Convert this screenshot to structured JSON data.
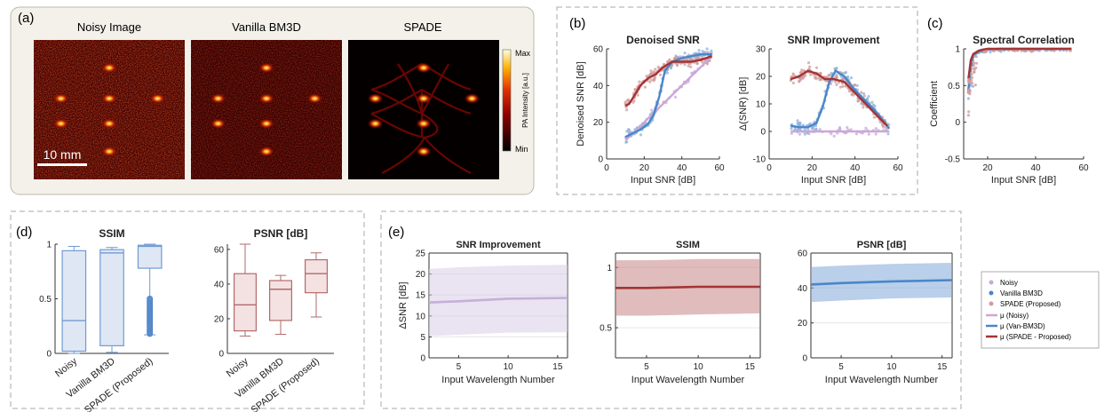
{
  "panel_labels": {
    "a": "(a)",
    "b": "(b)",
    "c": "(c)",
    "d": "(d)",
    "e": "(e)"
  },
  "colors": {
    "noisy": "#c9a8d8",
    "noisy_line": "#c9a8d8",
    "bm3d": "#8fb2dc",
    "bm3d_line": "#4a86c8",
    "spade": "#d29b9b",
    "spade_line": "#a33434",
    "frame_border": "#aaaaaa",
    "panel_a_bg": "#f3f1ea"
  },
  "panel_a": {
    "titles": [
      "Noisy Image",
      "Vanilla BM3D",
      "SPADE"
    ],
    "colorbar": {
      "max": "Max",
      "min": "Min",
      "label": "PA Intensity [a.u.]"
    },
    "scalebar": "10 mm"
  },
  "chart_data": [
    {
      "type": "scatter",
      "title": "Denoised SNR",
      "xlabel": "Input SNR [dB]",
      "ylabel": "Denoised SNR [dB]",
      "xlim": [
        0,
        60
      ],
      "ylim": [
        0,
        60
      ],
      "xticks": [
        0,
        20,
        40,
        60
      ],
      "yticks": [
        0,
        20,
        40,
        60
      ],
      "series": [
        {
          "name": "μ (Noisy)",
          "kind": "line",
          "x": [
            10,
            56
          ],
          "y": [
            10,
            56
          ]
        },
        {
          "name": "μ (Van-BM3D)",
          "kind": "line",
          "x": [
            10,
            14,
            18,
            22,
            25,
            28,
            31,
            35,
            40,
            45,
            50,
            56
          ],
          "y": [
            12,
            14,
            16,
            19,
            24,
            34,
            48,
            53,
            55,
            56,
            57,
            57
          ]
        },
        {
          "name": "μ (SPADE - Proposed)",
          "kind": "line",
          "x": [
            10,
            12,
            15,
            18,
            22,
            26,
            30,
            35,
            40,
            45,
            50,
            56
          ],
          "y": [
            29,
            30,
            35,
            40,
            44,
            46,
            50,
            53,
            53,
            53,
            54,
            56
          ]
        }
      ]
    },
    {
      "type": "scatter",
      "title": "SNR Improvement",
      "xlabel": "Input SNR [dB]",
      "ylabel": "Δ(SNR) [dB]",
      "xlim": [
        0,
        60
      ],
      "ylim": [
        -10,
        30
      ],
      "xticks": [
        0,
        20,
        40,
        60
      ],
      "yticks": [
        -10,
        0,
        10,
        20,
        30
      ],
      "series": [
        {
          "name": "μ (Noisy)",
          "kind": "line",
          "x": [
            10,
            56
          ],
          "y": [
            0,
            0
          ]
        },
        {
          "name": "μ (Van-BM3D)",
          "kind": "line",
          "x": [
            10,
            14,
            18,
            22,
            25,
            28,
            31,
            35,
            40,
            45,
            50,
            56
          ],
          "y": [
            2,
            1.5,
            1.5,
            3,
            9,
            18,
            22,
            20,
            15,
            11,
            7,
            1
          ]
        },
        {
          "name": "μ (SPADE - Proposed)",
          "kind": "line",
          "x": [
            10,
            14,
            18,
            22,
            26,
            30,
            35,
            40,
            45,
            50,
            55
          ],
          "y": [
            19,
            20,
            22,
            21,
            19,
            19,
            18,
            14,
            10,
            6,
            2
          ]
        }
      ]
    },
    {
      "type": "scatter",
      "title": "Spectral Correlation",
      "xlabel": "Input SNR [dB]",
      "ylabel": "Coefficient",
      "xlim": [
        10,
        60
      ],
      "ylim": [
        -0.5,
        1
      ],
      "xticks": [
        20,
        40,
        60
      ],
      "yticks": [
        -0.5,
        0,
        0.5,
        1
      ],
      "series": [
        {
          "name": "μ (Van-BM3D)",
          "kind": "line",
          "x": [
            12,
            13,
            14,
            16,
            18,
            20,
            25,
            30,
            55
          ],
          "y": [
            0.45,
            0.75,
            0.9,
            0.96,
            0.98,
            0.99,
            1,
            1,
            1
          ]
        },
        {
          "name": "μ (SPADE - Proposed)",
          "kind": "line",
          "x": [
            12,
            13,
            14,
            16,
            18,
            20,
            25,
            30,
            55
          ],
          "y": [
            0.6,
            0.85,
            0.93,
            0.97,
            0.99,
            1,
            1,
            1,
            1
          ]
        }
      ]
    },
    {
      "type": "box",
      "title": "SSIM",
      "categories": [
        "Noisy",
        "Vanilla BM3D",
        "SPADE (Proposed)"
      ],
      "ylim": [
        0,
        1
      ],
      "yticks": [
        0,
        0.5,
        1
      ],
      "boxes": [
        {
          "min": 0,
          "q1": 0.02,
          "median": 0.3,
          "q3": 0.94,
          "max": 0.98
        },
        {
          "min": 0.01,
          "q1": 0.07,
          "median": 0.92,
          "q3": 0.95,
          "max": 0.97
        },
        {
          "min": 0.17,
          "q1": 0.78,
          "median": 0.98,
          "q3": 0.99,
          "max": 1,
          "outliers": [
            0.18,
            0.2,
            0.22,
            0.24,
            0.26,
            0.28,
            0.3,
            0.32,
            0.34,
            0.36,
            0.38,
            0.4,
            0.42,
            0.44,
            0.46,
            0.48,
            0.5
          ]
        }
      ]
    },
    {
      "type": "box",
      "title": "PSNR [dB]",
      "categories": [
        "Noisy",
        "Vanilla BM3D",
        "SPADE (Proposed)"
      ],
      "ylim": [
        0,
        63
      ],
      "yticks": [
        0,
        20,
        40,
        60
      ],
      "boxes": [
        {
          "min": 10,
          "q1": 13,
          "median": 28,
          "q3": 46,
          "max": 63
        },
        {
          "min": 11,
          "q1": 19,
          "median": 37,
          "q3": 42,
          "max": 45
        },
        {
          "min": 21,
          "q1": 35,
          "median": 46,
          "q3": 54,
          "max": 58
        }
      ]
    },
    {
      "type": "area",
      "title": "SNR Improvement",
      "xlabel": "Input Wavelength Number",
      "ylabel": "ΔSNR [dB]",
      "xlim": [
        2,
        16
      ],
      "ylim": [
        0,
        25
      ],
      "xticks": [
        5,
        10,
        15
      ],
      "yticks": [
        0,
        5,
        10,
        15,
        20,
        25
      ],
      "x": [
        2,
        5,
        10,
        16
      ],
      "mean": [
        13.2,
        13.5,
        14.1,
        14.3
      ],
      "lower": [
        5.2,
        5.5,
        6,
        6.1
      ],
      "upper": [
        21.2,
        21.6,
        22,
        22.2
      ]
    },
    {
      "type": "area",
      "title": "SSIM",
      "xlabel": "Input Wavelength Number",
      "ylabel": "",
      "xlim": [
        2,
        16
      ],
      "ylim": [
        0.25,
        1.12
      ],
      "xticks": [
        5,
        10,
        15
      ],
      "yticks": [
        0.5,
        1
      ],
      "x": [
        2,
        5,
        10,
        16
      ],
      "mean": [
        0.83,
        0.83,
        0.84,
        0.84
      ],
      "lower": [
        0.6,
        0.6,
        0.61,
        0.62
      ],
      "upper": [
        1.06,
        1.06,
        1.07,
        1.07
      ]
    },
    {
      "type": "area",
      "title": "PSNR [dB]",
      "xlabel": "Input Wavelength Number",
      "ylabel": "",
      "xlim": [
        2,
        16
      ],
      "ylim": [
        0,
        60
      ],
      "xticks": [
        5,
        10,
        15
      ],
      "yticks": [
        0,
        20,
        40,
        60
      ],
      "x": [
        2,
        5,
        10,
        16
      ],
      "mean": [
        42,
        42.8,
        43.8,
        44.5
      ],
      "lower": [
        32,
        32.8,
        34,
        34.6
      ],
      "upper": [
        52,
        52.8,
        53.8,
        54.4
      ]
    }
  ],
  "legend": {
    "items": [
      "Noisy",
      "Vanilla BM3D",
      "SPADE (Proposed)",
      "μ (Noisy)",
      "μ (Van-BM3D)",
      "μ (SPADE - Proposed)"
    ]
  }
}
